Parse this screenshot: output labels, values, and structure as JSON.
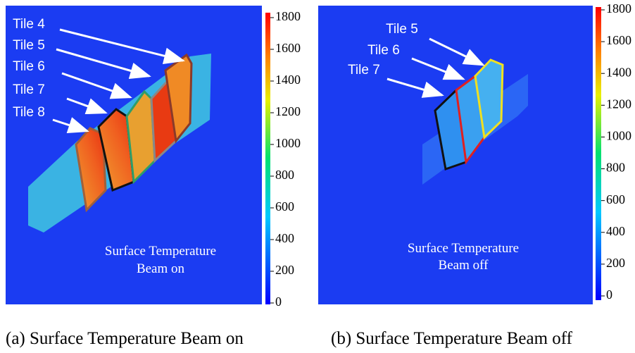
{
  "panels": [
    {
      "caption": "(a) Surface Temperature Beam on",
      "overlay": [
        "Surface Temperature",
        "Beam on"
      ],
      "tiles": [
        "Tile 4",
        "Tile 5",
        "Tile 6",
        "Tile 7",
        "Tile 8"
      ],
      "colorbar_ticks": [
        0,
        200,
        400,
        600,
        800,
        1000,
        1200,
        1400,
        1600,
        1800
      ]
    },
    {
      "caption": "(b) Surface Temperature Beam off",
      "overlay": [
        "Surface Temperature",
        "Beam off"
      ],
      "tiles": [
        "Tile 5",
        "Tile 6",
        "Tile 7"
      ],
      "colorbar_ticks": [
        0,
        200,
        400,
        600,
        800,
        1000,
        1200,
        1400,
        1600,
        1800
      ]
    }
  ]
}
